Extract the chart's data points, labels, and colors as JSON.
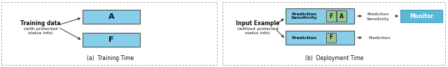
{
  "bg_color": "#ffffff",
  "light_blue": "#87CEEB",
  "light_green": "#9DC88D",
  "monitor_blue": "#5BB8D4",
  "box_edge": "#555555",
  "dashed_border": "#aaaaaa",
  "panel_a_caption": "(a)  Training Time",
  "panel_b_caption": "(b)  Deployment Time",
  "train_label_line1": "Training data",
  "train_label_line2": "(with protected",
  "train_label_line3": "status info)",
  "deploy_label_line1": "Input Example",
  "deploy_label_line2": "(without protected",
  "deploy_label_line3": "status info)",
  "box_A_label": "A",
  "box_F_label": "F",
  "pred_sens_label": "Prediction\nSensitivity",
  "pred_label": "Prediction",
  "monitor_label": "Monitor",
  "pred_sens_out_line1": "Prediction",
  "pred_sens_out_line2": "Sensitivity",
  "pred_out": "Prediction",
  "fig_w": 6.4,
  "fig_h": 0.96,
  "dpi": 100
}
